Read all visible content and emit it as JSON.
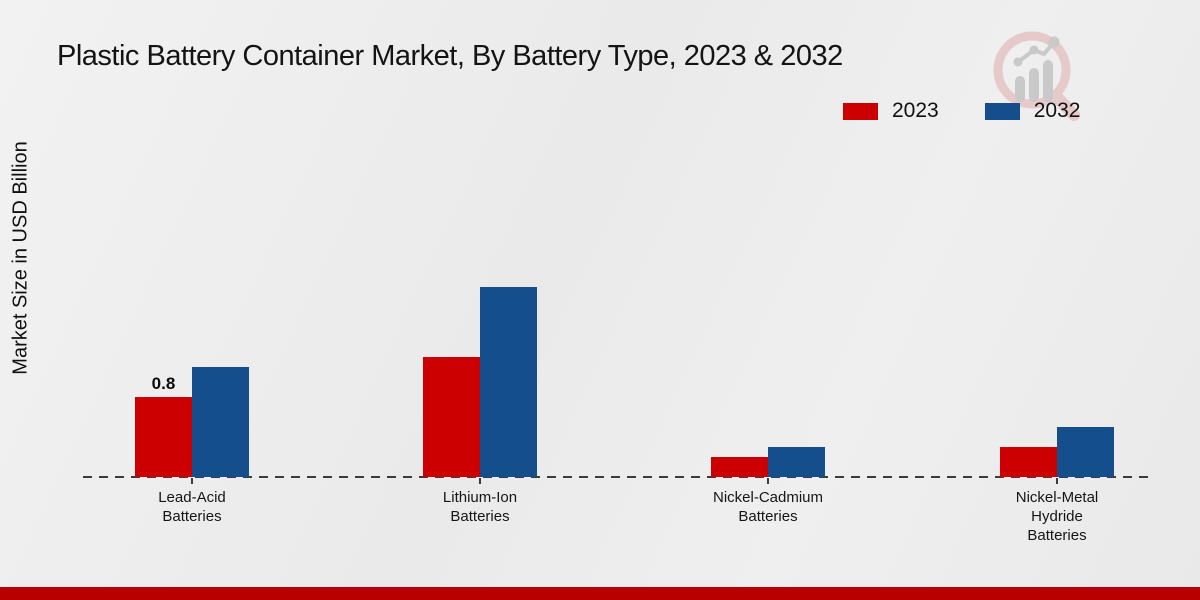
{
  "page": {
    "title": "Plastic Battery Container Market, By Battery Type, 2023 & 2032",
    "y_axis_label": "Market Size in USD Billion"
  },
  "chart_data": {
    "type": "bar",
    "title": "Plastic Battery Container Market, By Battery Type, 2023 & 2032",
    "xlabel": "",
    "ylabel": "Market Size in USD Billion",
    "categories": [
      "Lead-Acid\nBatteries",
      "Lithium-Ion\nBatteries",
      "Nickel-Cadmium\nBatteries",
      "Nickel-Metal\nHydride\nBatteries"
    ],
    "series": [
      {
        "name": "2023",
        "color": "#cc0000",
        "values": [
          0.8,
          1.2,
          0.2,
          0.3
        ],
        "data_labels": [
          "0.8",
          null,
          null,
          null
        ]
      },
      {
        "name": "2032",
        "color": "#144e8c",
        "values": [
          1.1,
          1.9,
          0.3,
          0.5
        ],
        "data_labels": [
          null,
          null,
          null,
          null
        ]
      }
    ],
    "ylim": [
      0,
      2.2
    ],
    "grid": false,
    "legend_position": "top-right",
    "baseline_style": "dashed",
    "y_axis_ticks_visible": false
  },
  "icons": {
    "watermark": "magnifier-bar-chart-logo"
  },
  "colors": {
    "background": "#ececec",
    "bottom_strip": "#b80000",
    "axis_dash": "#3c3c3c",
    "watermark_glass": "#e6c9c9",
    "watermark_bars": "#c9c9c9"
  }
}
